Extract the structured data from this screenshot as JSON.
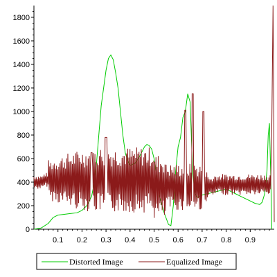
{
  "chart_data": {
    "type": "line",
    "title": "",
    "xlabel": "",
    "ylabel": "",
    "xlim": [
      0.0,
      1.0
    ],
    "ylim": [
      0,
      1900
    ],
    "grid": false,
    "legend_placement": "bottom",
    "x_ticks": [
      0.1,
      0.2,
      0.3,
      0.4,
      0.5,
      0.6,
      0.7,
      0.8,
      0.9
    ],
    "x_tick_labels": [
      "0.1",
      "0.2",
      "0.3",
      "0.4",
      "0.5",
      "0.6",
      "0.7",
      "0.8",
      "0.9"
    ],
    "y_ticks": [
      0,
      200,
      400,
      600,
      800,
      1000,
      1200,
      1400,
      1600,
      1800
    ],
    "y_tick_labels": [
      "0",
      "200",
      "400",
      "600",
      "800",
      "1000",
      "1200",
      "1400",
      "1600",
      "1800"
    ],
    "series": [
      {
        "name": "Distorted Image",
        "color": "#00cc00",
        "x": [
          0.0,
          0.03,
          0.06,
          0.08,
          0.1,
          0.14,
          0.18,
          0.2,
          0.22,
          0.24,
          0.25,
          0.26,
          0.27,
          0.28,
          0.29,
          0.3,
          0.31,
          0.32,
          0.33,
          0.34,
          0.35,
          0.36,
          0.37,
          0.38,
          0.39,
          0.4,
          0.42,
          0.44,
          0.46,
          0.47,
          0.48,
          0.49,
          0.5,
          0.51,
          0.52,
          0.54,
          0.56,
          0.57,
          0.58,
          0.59,
          0.6,
          0.61,
          0.62,
          0.63,
          0.64,
          0.65,
          0.655,
          0.66,
          0.67,
          0.68,
          0.69,
          0.7,
          0.72,
          0.74,
          0.76,
          0.78,
          0.8,
          0.82,
          0.84,
          0.86,
          0.88,
          0.9,
          0.92,
          0.94,
          0.95,
          0.96,
          0.97,
          0.975,
          0.98,
          0.985,
          0.99
        ],
        "values": [
          0,
          10,
          50,
          100,
          120,
          130,
          140,
          160,
          200,
          280,
          380,
          550,
          800,
          1050,
          1200,
          1350,
          1450,
          1480,
          1440,
          1330,
          1200,
          1000,
          800,
          650,
          580,
          540,
          560,
          620,
          700,
          720,
          710,
          680,
          600,
          450,
          300,
          150,
          40,
          30,
          200,
          500,
          700,
          780,
          950,
          1000,
          1150,
          1080,
          800,
          500,
          300,
          270,
          280,
          290,
          300,
          310,
          320,
          330,
          340,
          320,
          300,
          280,
          260,
          240,
          220,
          210,
          230,
          300,
          500,
          800,
          900,
          500,
          0
        ]
      },
      {
        "name": "Equalized Image",
        "color": "#8b1a1a",
        "x": [],
        "values": []
      }
    ]
  },
  "legend": {
    "items": [
      "Distorted Image",
      "Equalized Image"
    ]
  }
}
